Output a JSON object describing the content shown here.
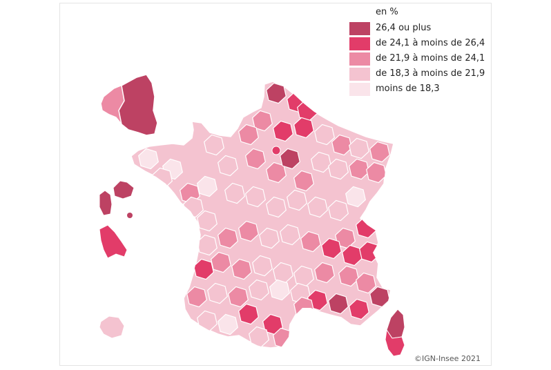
{
  "legend": {
    "title": "en %",
    "items": [
      {
        "label": "26,4 ou plus",
        "color": "#bd4263"
      },
      {
        "label": "de 24,1 à moins de 26,4",
        "color": "#e23c69"
      },
      {
        "label": "de 21,9 à moins de 24,1",
        "color": "#ec8aa4"
      },
      {
        "label": "de 18,3 à moins de 21,9",
        "color": "#f4c3d0"
      },
      {
        "label": "moins de 18,3",
        "color": "#fae4ea"
      }
    ]
  },
  "credit": "©IGN-Insee 2021",
  "map": {
    "subject": "choropleth-map-of-french-departments",
    "region_classes": {
      "corse-du-sud": 1,
      "haute-corse": 0,
      "guadeloupe": 0,
      "martinique": 1,
      "la-reunion": 3,
      "paris": 1
    }
  }
}
